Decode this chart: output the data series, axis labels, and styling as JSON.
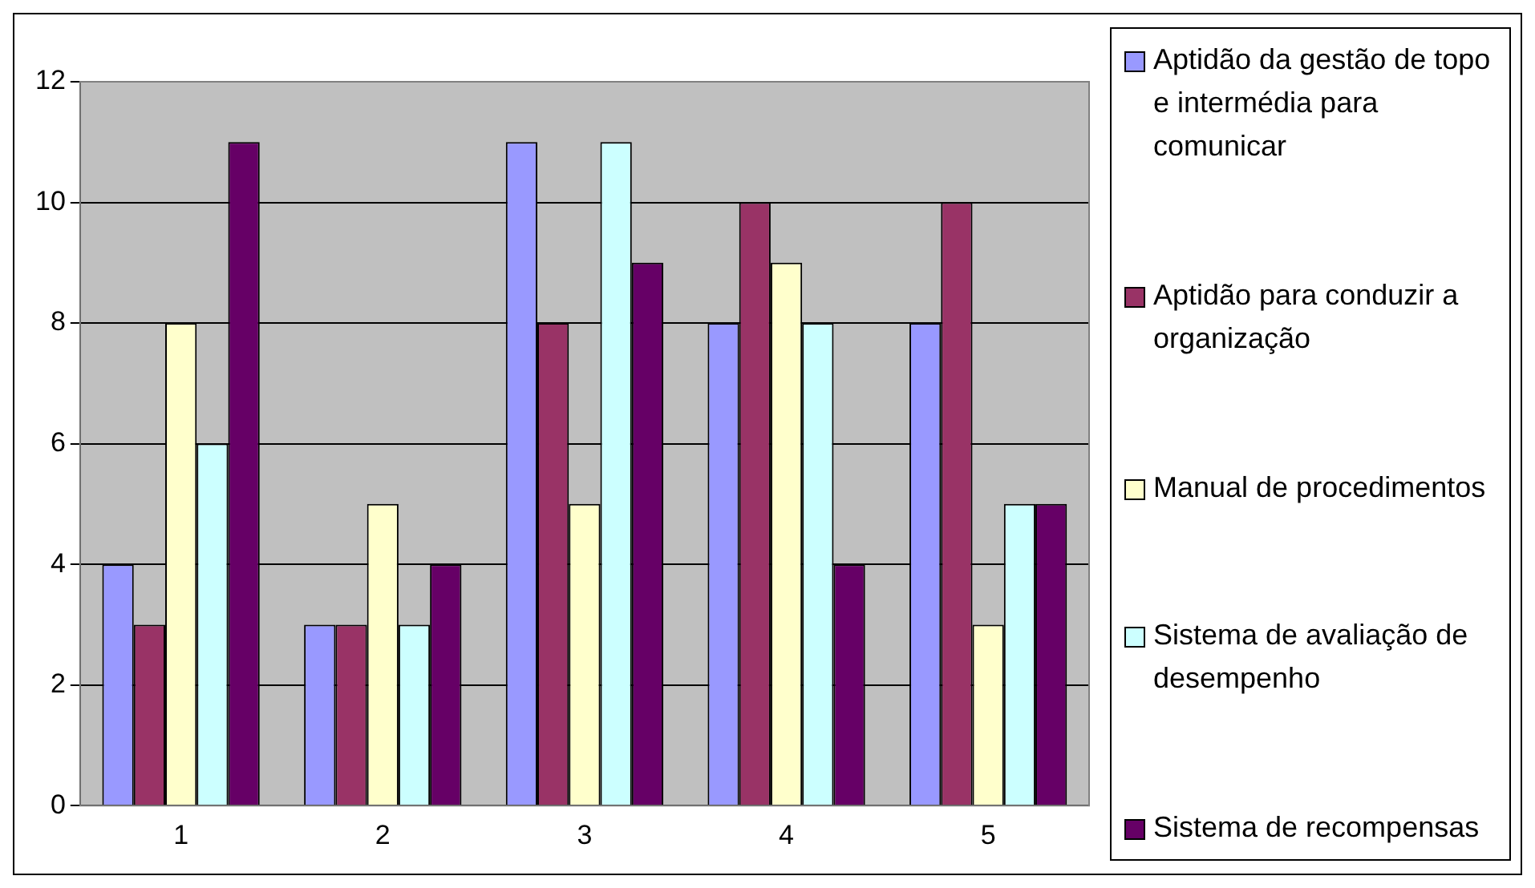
{
  "chart_data": {
    "type": "bar",
    "categories": [
      "1",
      "2",
      "3",
      "4",
      "5"
    ],
    "series": [
      {
        "name": "Aptidão da gestão de topo e intermédia para comunicar",
        "color": "#9999ff",
        "values": [
          4,
          3,
          11,
          8,
          8
        ]
      },
      {
        "name": "Aptidão para conduzir a organização",
        "color": "#993366",
        "values": [
          3,
          3,
          8,
          10,
          10
        ]
      },
      {
        "name": "Manual de procedimentos",
        "color": "#ffffcc",
        "values": [
          8,
          5,
          5,
          9,
          3
        ]
      },
      {
        "name": "Sistema de avaliação de desempenho",
        "color": "#ccffff",
        "values": [
          6,
          3,
          11,
          8,
          5
        ]
      },
      {
        "name": "Sistema de recompensas",
        "color": "#660066",
        "values": [
          11,
          4,
          9,
          4,
          5
        ]
      }
    ],
    "ylim": [
      0,
      12
    ],
    "yticks": [
      0,
      2,
      4,
      6,
      8,
      10,
      12
    ],
    "grid": "y",
    "legend": "right"
  }
}
